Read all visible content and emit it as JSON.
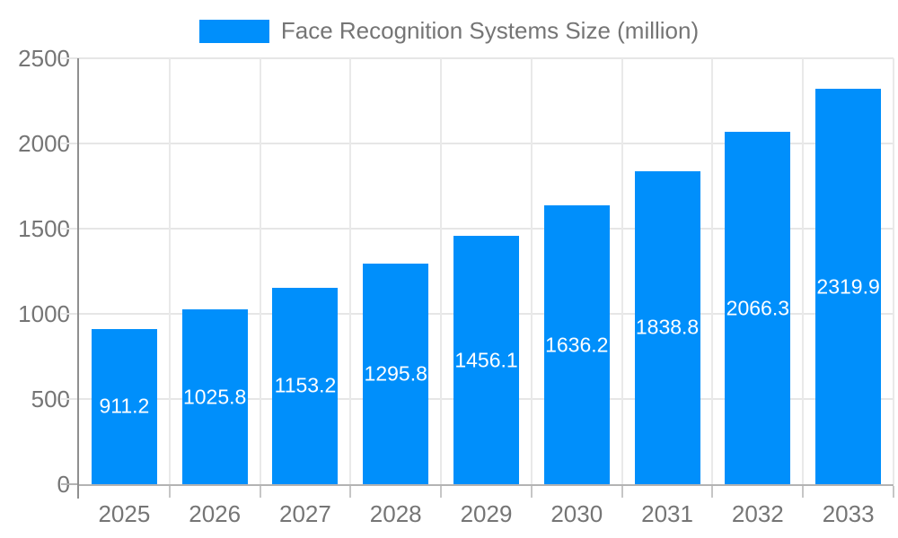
{
  "legend": {
    "items": [
      {
        "label": "Face Recognition Systems Size (million)",
        "color": "#008FFB"
      }
    ]
  },
  "chart_data": {
    "type": "bar",
    "title": "",
    "categories": [
      "2025",
      "2026",
      "2027",
      "2028",
      "2029",
      "2030",
      "2031",
      "2032",
      "2033"
    ],
    "series": [
      {
        "name": "Face Recognition Systems Size (million)",
        "values": [
          911.2,
          1025.8,
          1153.2,
          1295.8,
          1456.1,
          1636.2,
          1838.8,
          2066.3,
          2319.9
        ]
      }
    ],
    "value_labels": [
      "911.2",
      "1025.8",
      "1153.2",
      "1295.8",
      "1456.1",
      "1636.2",
      "1838.8",
      "2066.3",
      "2319.9"
    ],
    "xlabel": "",
    "ylabel": "",
    "ylim": [
      0,
      2500
    ],
    "yticks": [
      0,
      500,
      1000,
      1500,
      2000,
      2500
    ],
    "grid": true,
    "legend_position": "top-center",
    "bar_color": "#008FFB",
    "value_label_color": "#ffffff"
  },
  "colors": {
    "bar": "#008FFB",
    "axis_text": "#757575",
    "gridline": "#e6e6e6",
    "y_axis_line": "#8f8f8f",
    "x_axis_line": "#b3b3b3",
    "value_label": "#ffffff",
    "background": "#ffffff"
  }
}
